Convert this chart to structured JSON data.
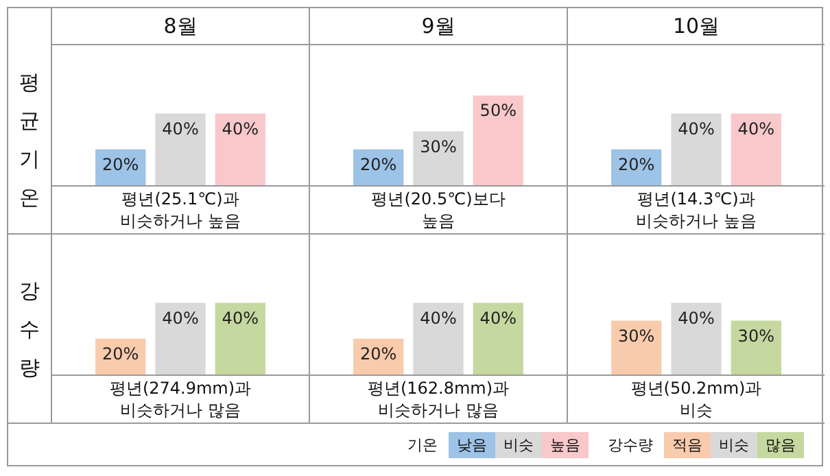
{
  "chart_data": [
    {
      "type": "bar",
      "title": "8월",
      "ylabel": "평균기온",
      "xlabel": "평년(25.1℃)과\n비슷하거나 높음",
      "categories": [
        null
      ],
      "legend": "bottom right",
      "legend_title": "기온",
      "series": [
        {
          "name": "낮음",
          "color": "#9dc3e6",
          "values": [
            20
          ],
          "value_labels": [
            "20%"
          ]
        },
        {
          "name": "비슷",
          "color": "#d9d9d9",
          "values": [
            40
          ],
          "value_labels": [
            "40%"
          ]
        },
        {
          "name": "높음",
          "color": "#f8c8ca",
          "values": [
            40
          ],
          "value_labels": [
            "40%"
          ]
        }
      ]
    },
    {
      "type": "bar",
      "title": "9월",
      "xlabel": "평년(20.5℃)보다\n높음",
      "categories": [
        null
      ],
      "series": [
        {
          "color": "#9dc3e6",
          "values": [
            20
          ],
          "value_labels": [
            "20%"
          ]
        },
        {
          "color": "#d9d9d9",
          "values": [
            30
          ],
          "value_labels": [
            "30%"
          ]
        },
        {
          "color": "#f8c8ca",
          "values": [
            50
          ],
          "value_labels": [
            "50%"
          ]
        }
      ]
    },
    {
      "type": "bar",
      "title": "10월",
      "xlabel": "평년(14.3℃)과\n비슷하거나 높음",
      "categories": [
        null
      ],
      "series": [
        {
          "color": "#9dc3e6",
          "values": [
            20
          ],
          "value_labels": [
            "20%"
          ]
        },
        {
          "color": "#d9d9d9",
          "values": [
            40
          ],
          "value_labels": [
            "40%"
          ]
        },
        {
          "color": "#f8c8ca",
          "values": [
            40
          ],
          "value_labels": [
            "40%"
          ]
        }
      ]
    },
    {
      "type": "bar",
      "ylabel": "강수량",
      "xlabel": "평년(274.9mm)과\n비슷하거나 많음",
      "categories": [
        null
      ],
      "legend": "bottom right",
      "legend_title": "강수량",
      "series": [
        {
          "name": "적음",
          "color": "#f8cbad",
          "values": [
            20
          ],
          "value_labels": [
            "20%"
          ]
        },
        {
          "name": "비슷",
          "color": "#d9d9d9",
          "values": [
            40
          ],
          "value_labels": [
            "40%"
          ]
        },
        {
          "name": "많음",
          "color": "#c5d89f",
          "values": [
            40
          ],
          "value_labels": [
            "40%"
          ]
        }
      ]
    },
    {
      "type": "bar",
      "xlabel": "평년(162.8mm)과\n비슷하거나 많음",
      "categories": [
        null
      ],
      "series": [
        {
          "color": "#f8cbad",
          "values": [
            20
          ],
          "value_labels": [
            "20%"
          ]
        },
        {
          "color": "#d9d9d9",
          "values": [
            40
          ],
          "value_labels": [
            "40%"
          ]
        },
        {
          "color": "#c5d89f",
          "values": [
            40
          ],
          "value_labels": [
            "40%"
          ]
        }
      ]
    },
    {
      "type": "bar",
      "xlabel": "평년(50.2mm)과\n비슷",
      "categories": [
        null
      ],
      "series": [
        {
          "color": "#f8cbad",
          "values": [
            30
          ],
          "value_labels": [
            "30%"
          ]
        },
        {
          "color": "#d9d9d9",
          "values": [
            40
          ],
          "value_labels": [
            "40%"
          ]
        },
        {
          "color": "#c5d89f",
          "values": [
            30
          ],
          "value_labels": [
            "30%"
          ]
        }
      ]
    }
  ]
}
